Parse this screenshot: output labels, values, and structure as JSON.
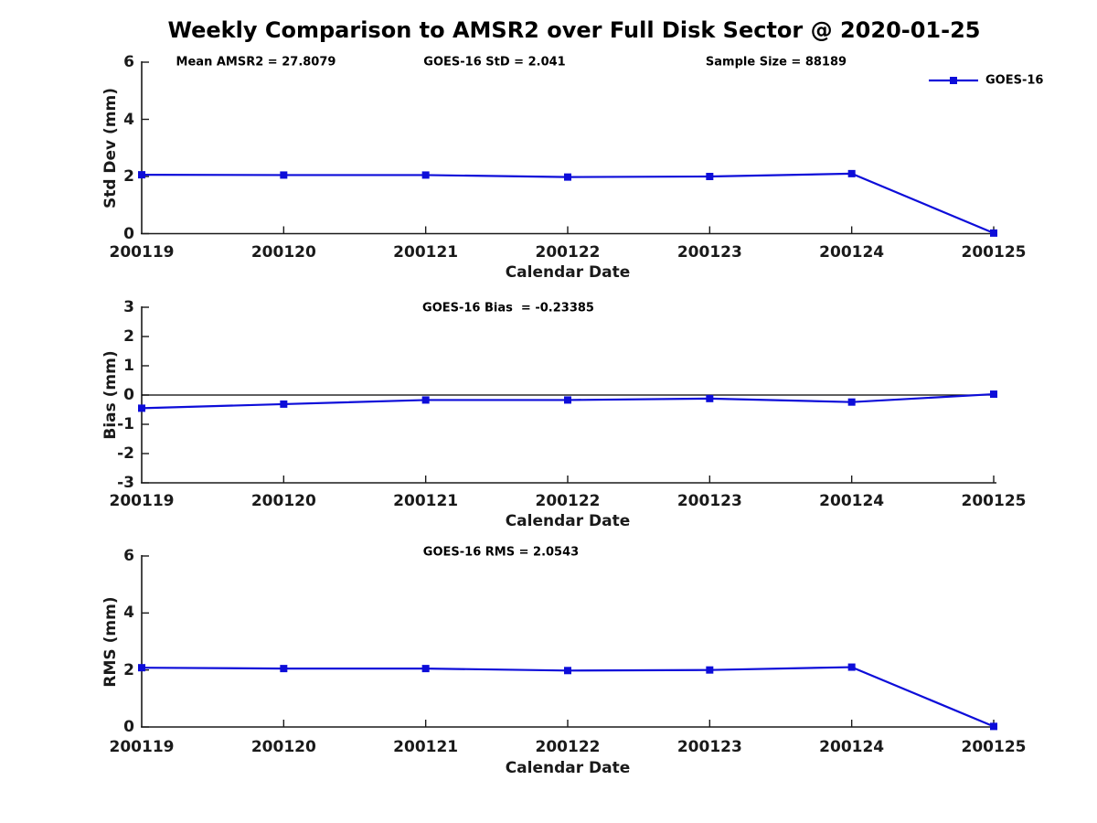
{
  "title": "Weekly Comparison to AMSR2 over Full Disk Sector @ 2020-01-25",
  "legend": {
    "label": "GOES-16"
  },
  "colors": {
    "series": "#0d0dd9",
    "axis": "#1a1a1a",
    "text": "#1a1a1a",
    "zero_line": "#000000",
    "background": "#ffffff"
  },
  "chart_data": [
    {
      "type": "line",
      "name": "std-dev",
      "annotations": [
        "Mean AMSR2 = 27.8079",
        "GOES-16 StD = 2.041",
        "Sample Size = 88189"
      ],
      "ylabel": "Std Dev (mm)",
      "xlabel": "Calendar Date",
      "ylim": [
        0,
        6
      ],
      "y_ticks": [
        0,
        2,
        4,
        6
      ],
      "categories": [
        "200119",
        "200120",
        "200121",
        "200122",
        "200123",
        "200124",
        "200125"
      ],
      "series": [
        {
          "name": "GOES-16",
          "values": [
            2.06,
            2.05,
            2.05,
            1.98,
            2.0,
            2.1,
            0.02
          ]
        }
      ],
      "grid": false,
      "zero_line": false,
      "legend_position": "top-right"
    },
    {
      "type": "line",
      "name": "bias",
      "title": "GOES-16 Bias  = -0.23385",
      "ylabel": "Bias (mm)",
      "xlabel": "Calendar Date",
      "ylim": [
        -3,
        3
      ],
      "y_ticks": [
        -3,
        -2,
        -1,
        0,
        1,
        2,
        3
      ],
      "categories": [
        "200119",
        "200120",
        "200121",
        "200122",
        "200123",
        "200124",
        "200125"
      ],
      "series": [
        {
          "name": "GOES-16",
          "values": [
            -0.45,
            -0.31,
            -0.17,
            -0.17,
            -0.12,
            -0.24,
            0.03
          ]
        }
      ],
      "grid": false,
      "zero_line": true
    },
    {
      "type": "line",
      "name": "rms",
      "title": "GOES-16 RMS = 2.0543",
      "ylabel": "RMS (mm)",
      "xlabel": "Calendar Date",
      "ylim": [
        0,
        6
      ],
      "y_ticks": [
        0,
        2,
        4,
        6
      ],
      "categories": [
        "200119",
        "200120",
        "200121",
        "200122",
        "200123",
        "200124",
        "200125"
      ],
      "series": [
        {
          "name": "GOES-16",
          "values": [
            2.08,
            2.05,
            2.05,
            1.98,
            2.0,
            2.1,
            0.02
          ]
        }
      ],
      "grid": false,
      "zero_line": false
    }
  ]
}
